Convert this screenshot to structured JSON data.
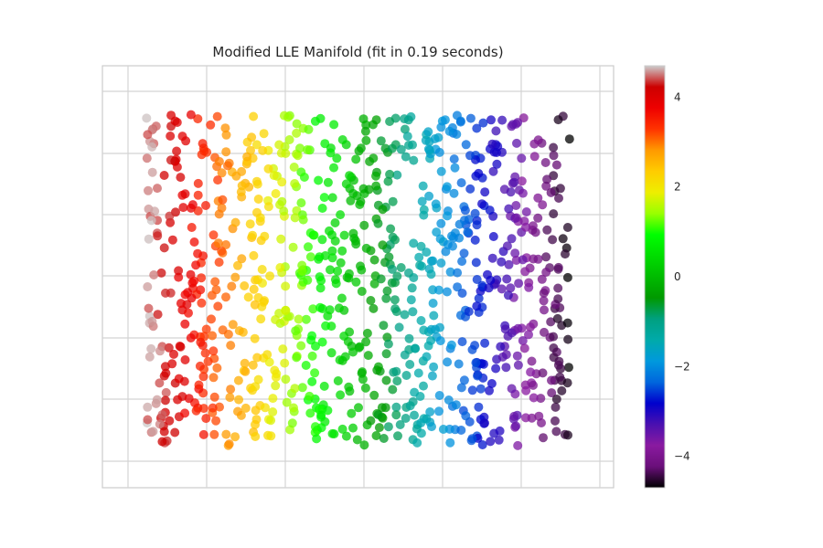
{
  "chart_data": {
    "type": "scatter",
    "title": "Modified LLE Manifold (fit in 0.19 seconds)",
    "xlabel": "",
    "ylabel": "",
    "axis_tick_labels_shown": false,
    "grid": true,
    "colormap": "nipy_spectral (reversed: red = high, black = low)",
    "colorbar": {
      "range": [
        -4.7,
        4.7
      ],
      "tick_labels": [
        "4",
        "2",
        "0",
        "−2",
        "−4"
      ],
      "tick_values": [
        4,
        2,
        0,
        -2,
        -4
      ]
    },
    "point_count_approx": 1000,
    "point_alpha": 0.75,
    "data_note": "Points form vertical color bands: red at left (high), through orange, yellow, green, cyan, blue, purple, to black at right (low)."
  }
}
